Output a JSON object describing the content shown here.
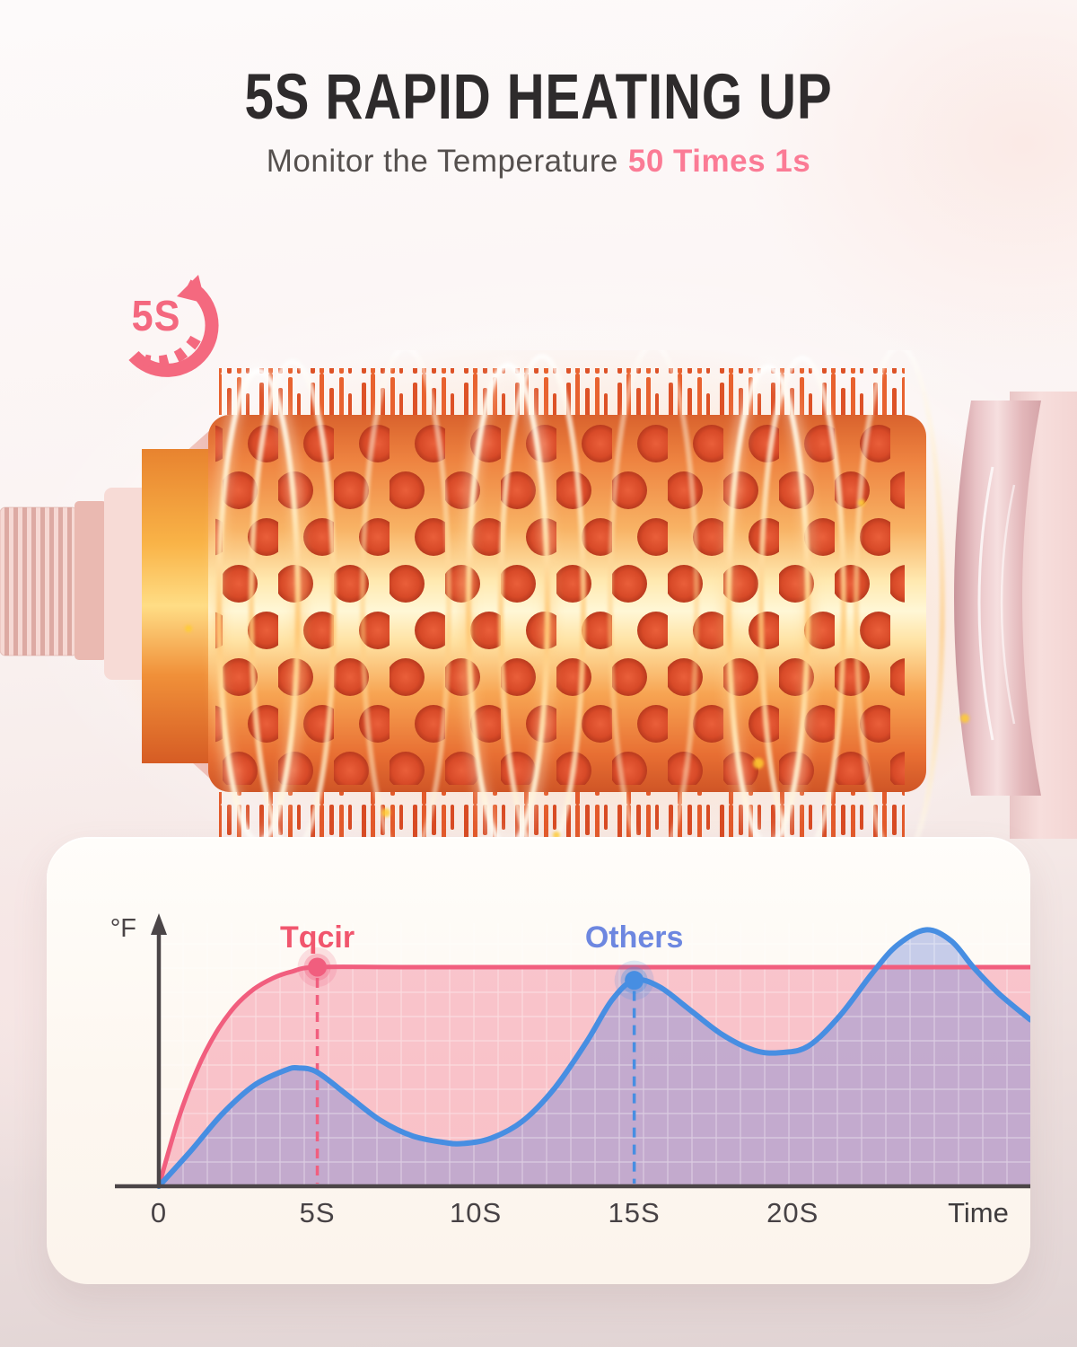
{
  "header": {
    "title": "5S RAPID HEATING UP",
    "subtitle": "Monitor the Temperature",
    "subtitle_accent": "50 Times 1s"
  },
  "badge": {
    "label": "5S"
  },
  "colors": {
    "title": "#2e2b2c",
    "subtitle": "#55504e",
    "accent_pink": "#fb7b95",
    "badge_pink": "#f4687f",
    "axis": "#4b4547"
  },
  "chart_data": {
    "type": "line",
    "title": "",
    "xlabel": "Time",
    "ylabel": "°F",
    "x_unit": "seconds",
    "y_unit": "percent of Tqcir steady temperature",
    "xlim": [
      0,
      27.5
    ],
    "ylim": [
      0,
      125
    ],
    "grid": true,
    "x_ticks": [
      {
        "t": 0,
        "label": "0"
      },
      {
        "t": 5,
        "label": "5S"
      },
      {
        "t": 10,
        "label": "10S"
      },
      {
        "t": 15,
        "label": "15S"
      },
      {
        "t": 20,
        "label": "20S"
      }
    ],
    "series": [
      {
        "name": "Tqcir",
        "line_color": "#f15e7e",
        "fill_color": "rgba(242,109,136,0.38)",
        "label_color": "#f1566e",
        "marker": {
          "t": 5,
          "value": 100,
          "dashed_to_axis": true
        },
        "points": [
          [
            0,
            0
          ],
          [
            0.6,
            30
          ],
          [
            1.2,
            53
          ],
          [
            1.8,
            70
          ],
          [
            2.4,
            82
          ],
          [
            3,
            90
          ],
          [
            3.6,
            95
          ],
          [
            4.2,
            98
          ],
          [
            5,
            100
          ],
          [
            8,
            100
          ],
          [
            14,
            100
          ],
          [
            20,
            100
          ],
          [
            27.5,
            100
          ]
        ]
      },
      {
        "name": "Others",
        "line_color": "#478ee2",
        "fill_color": "rgba(116,136,214,0.40)",
        "label_color": "#6d87e0",
        "marker": {
          "t": 15,
          "value": 94,
          "dashed_to_axis": true
        },
        "points": [
          [
            0,
            0
          ],
          [
            1,
            16
          ],
          [
            2,
            33
          ],
          [
            3,
            46
          ],
          [
            4,
            53
          ],
          [
            4.4,
            54
          ],
          [
            5,
            52
          ],
          [
            6,
            41
          ],
          [
            7,
            30
          ],
          [
            8,
            23
          ],
          [
            9,
            20
          ],
          [
            9.6,
            19.5
          ],
          [
            10.5,
            22
          ],
          [
            11.5,
            30
          ],
          [
            12.5,
            45
          ],
          [
            13.5,
            66
          ],
          [
            14.3,
            85
          ],
          [
            15,
            94
          ],
          [
            15.8,
            91
          ],
          [
            16.8,
            80
          ],
          [
            17.8,
            69
          ],
          [
            18.8,
            62
          ],
          [
            19.6,
            61
          ],
          [
            20.5,
            64
          ],
          [
            21.5,
            78
          ],
          [
            22.5,
            97
          ],
          [
            23.3,
            110
          ],
          [
            24.2,
            117
          ],
          [
            25,
            112
          ],
          [
            25.7,
            100
          ],
          [
            26.5,
            88
          ],
          [
            27.5,
            76
          ]
        ]
      }
    ]
  }
}
